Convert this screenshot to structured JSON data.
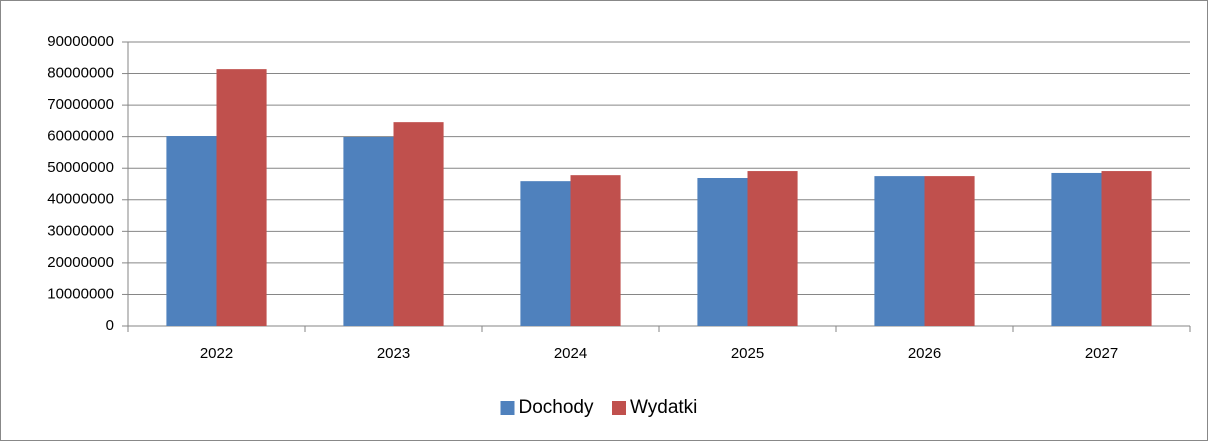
{
  "chart_data": {
    "type": "bar",
    "categories": [
      "2022",
      "2023",
      "2024",
      "2025",
      "2026",
      "2027"
    ],
    "series": [
      {
        "name": "Dochody",
        "color": "#4f81bd",
        "values": [
          60200000,
          59900000,
          45900000,
          46900000,
          47500000,
          48500000
        ]
      },
      {
        "name": "Wydatki",
        "color": "#c0504d",
        "values": [
          81400000,
          64600000,
          47800000,
          49100000,
          47500000,
          49100000
        ]
      }
    ],
    "ylim": [
      0,
      90000000
    ],
    "yticks": [
      0,
      10000000,
      20000000,
      30000000,
      40000000,
      50000000,
      60000000,
      70000000,
      80000000,
      90000000
    ],
    "grid": true,
    "legend": "bottom"
  }
}
